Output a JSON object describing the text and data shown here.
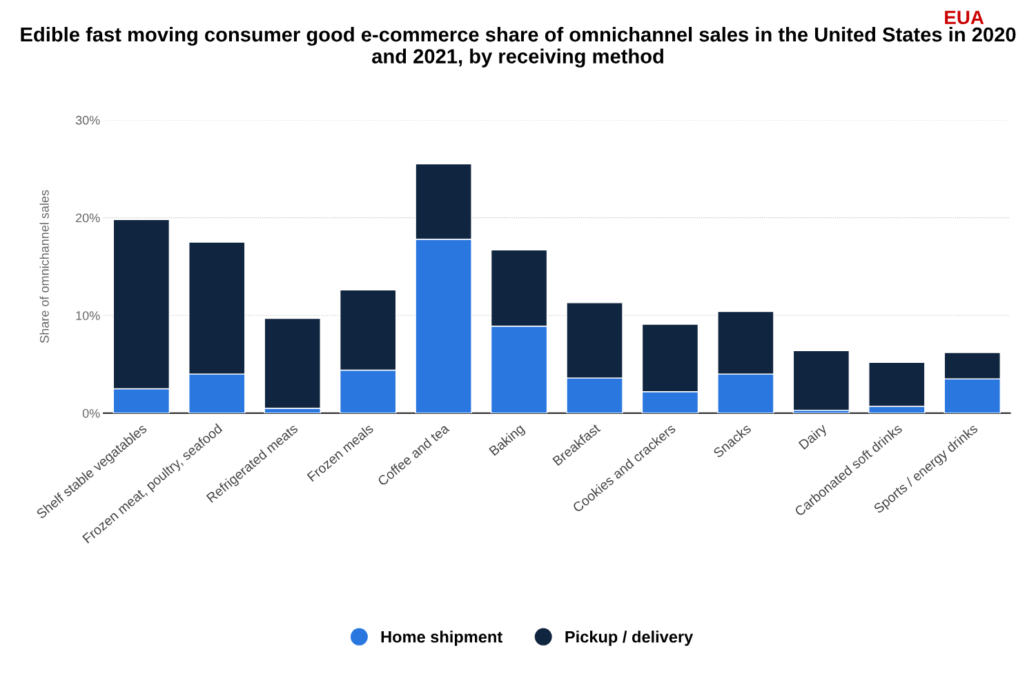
{
  "chart_data": {
    "type": "bar",
    "title": "Edible fast moving consumer good e-commerce share of omnichannel sales in the United States in 2020 and 2021, by receiving method",
    "ylabel": "Share of omnichannel sales",
    "annotations": [
      "EUA"
    ],
    "categories": [
      "Shelf stable vegatables",
      "Frozen meat, poultry, seafood",
      "Refrigerated meats",
      "Frozen meals",
      "Coffee and tea",
      "Baking",
      "Breakfast",
      "Cookies and crackers",
      "Snacks",
      "Dairy",
      "Carbonated soft drinks",
      "Sports / energy drinks"
    ],
    "stacked": true,
    "series": [
      {
        "name": "Home shipment",
        "color": "#2a77e0",
        "values": [
          2.5,
          4.0,
          0.5,
          4.4,
          17.8,
          8.9,
          3.6,
          2.2,
          4.0,
          0.3,
          0.7,
          3.5
        ]
      },
      {
        "name": "Pickup / delivery",
        "color": "#10253f",
        "values": [
          17.3,
          13.5,
          9.2,
          8.2,
          7.7,
          7.8,
          7.7,
          6.9,
          6.4,
          6.1,
          4.5,
          2.7
        ]
      }
    ],
    "ylim": [
      0,
      30
    ],
    "yticks": [
      {
        "value": 0,
        "label": "0%"
      },
      {
        "value": 10,
        "label": "10%"
      },
      {
        "value": 20,
        "label": "20%"
      },
      {
        "value": 30,
        "label": "30%"
      }
    ],
    "grid": "y",
    "legend": "bottom"
  }
}
